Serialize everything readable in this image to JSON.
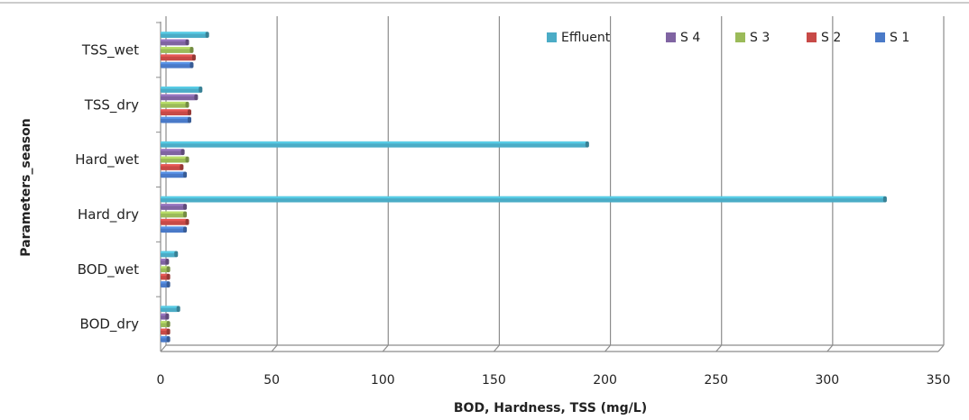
{
  "chart_data": {
    "type": "bar",
    "orientation": "horizontal",
    "style": "3d-clustered",
    "categories": [
      "BOD_dry",
      "BOD_wet",
      "Hard_dry",
      "Hard_wet",
      "TSS_dry",
      "TSS_wet"
    ],
    "series": [
      {
        "name": "S 1",
        "color": "#4a7ac8",
        "values": [
          3.5,
          3.5,
          11,
          11,
          13,
          14
        ]
      },
      {
        "name": "S 2",
        "color": "#c84a47",
        "values": [
          3.5,
          3.5,
          12,
          9.5,
          13,
          15
        ]
      },
      {
        "name": "S 3",
        "color": "#9bbb59",
        "values": [
          3.5,
          3.5,
          11,
          12,
          12,
          14
        ]
      },
      {
        "name": "S 4",
        "color": "#8064a2",
        "values": [
          3,
          3,
          11,
          10,
          16,
          12
        ]
      },
      {
        "name": "Effluent",
        "color": "#4bacc6",
        "values": [
          8,
          7,
          326,
          192,
          18,
          21
        ]
      }
    ],
    "legend_order": [
      "Effluent",
      "S 4",
      "S 3",
      "S 2",
      "S 1"
    ],
    "xlabel": "BOD, Hardness, TSS (mg/L)",
    "ylabel": "Parameters_season",
    "xlim": [
      0,
      350
    ],
    "xticks": [
      "0",
      "50",
      "100",
      "150",
      "200",
      "250",
      "300",
      "350"
    ],
    "grid": true,
    "legend_position": "top-right"
  }
}
